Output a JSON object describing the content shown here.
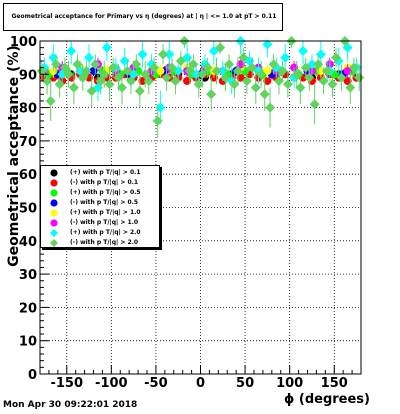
{
  "title": "Geometrical acceptance for Primary vs η (degrees) at |  η | <= 1.0 at pT > 0.11",
  "timestamp": "Mon Apr 30 09:22:01 2018",
  "chart_data": {
    "type": "scatter",
    "title": "Geometrical acceptance for Primary vs η (degrees) at |  η | <= 1.0 at pT > 0.11",
    "xlabel": "ϕ (degrees)",
    "ylabel": "Geometrical acceptance (%)",
    "xlim": [
      -180,
      180
    ],
    "ylim": [
      0,
      100
    ],
    "xticks": [
      -150,
      -100,
      -50,
      0,
      50,
      100,
      150
    ],
    "yticks": [
      0,
      10,
      20,
      30,
      40,
      50,
      60,
      70,
      80,
      90,
      100
    ],
    "grid": true,
    "legend_position": "middle-left",
    "series": [
      {
        "name": "(+) with p T/|q| > 0.1",
        "color": "#000000",
        "marker": "circle",
        "x": [
          -175,
          -145,
          -115,
          -85,
          -55,
          -25,
          5,
          35,
          65,
          95,
          125,
          155,
          175
        ],
        "y": [
          89,
          90,
          89,
          90,
          89,
          90,
          89,
          90,
          89,
          90,
          89,
          90,
          89
        ],
        "err": [
          1,
          1,
          1,
          1,
          1,
          1,
          1,
          1,
          1,
          1,
          1,
          1,
          1
        ]
      },
      {
        "name": "(-) with p T/|q| > 0.1",
        "color": "#ff0000",
        "marker": "circle",
        "x": [
          -175,
          -165,
          -155,
          -145,
          -135,
          -125,
          -115,
          -105,
          -95,
          -85,
          -75,
          -65,
          -55,
          -45,
          -35,
          -25,
          -15,
          -5,
          5,
          15,
          25,
          35,
          45,
          55,
          65,
          75,
          85,
          95,
          105,
          115,
          125,
          135,
          145,
          155,
          165,
          175
        ],
        "y": [
          89,
          89,
          88,
          89,
          90,
          89,
          88,
          89,
          89,
          90,
          89,
          88,
          89,
          90,
          89,
          89,
          88,
          89,
          90,
          89,
          88,
          89,
          89,
          90,
          89,
          88,
          89,
          90,
          89,
          89,
          88,
          89,
          90,
          89,
          88,
          89
        ],
        "err": [
          1,
          1,
          1,
          1,
          1,
          1,
          1,
          1,
          1,
          1,
          1,
          1,
          1,
          1,
          1,
          1,
          1,
          1,
          1,
          1,
          1,
          1,
          1,
          1,
          1,
          1,
          1,
          1,
          1,
          1,
          1,
          1,
          1,
          1,
          1,
          1
        ]
      },
      {
        "name": "(+) with p T/|q| > 0.5",
        "color": "#00ff00",
        "marker": "circle",
        "x": [
          -170,
          -150,
          -130,
          -110,
          -90,
          -70,
          -50,
          -30,
          -10,
          10,
          30,
          50,
          70,
          90,
          110,
          130,
          150,
          170
        ],
        "y": [
          90,
          91,
          90,
          91,
          90,
          91,
          90,
          91,
          90,
          91,
          90,
          91,
          90,
          91,
          90,
          91,
          90,
          91
        ],
        "err": [
          1.5,
          1.5,
          1.5,
          1.5,
          1.5,
          1.5,
          1.5,
          1.5,
          1.5,
          1.5,
          1.5,
          1.5,
          1.5,
          1.5,
          1.5,
          1.5,
          1.5,
          1.5
        ]
      },
      {
        "name": "(-) with p T/|q| > 0.5",
        "color": "#0000ff",
        "marker": "circle",
        "x": [
          -160,
          -120,
          -80,
          -40,
          0,
          40,
          80,
          120,
          160
        ],
        "y": [
          90,
          91,
          90,
          91,
          90,
          91,
          90,
          91,
          90
        ],
        "err": [
          1.5,
          1.5,
          1.5,
          1.5,
          1.5,
          1.5,
          1.5,
          1.5,
          1.5
        ]
      },
      {
        "name": "(+) with p T/|q| > 1.0",
        "color": "#ffff00",
        "marker": "circle",
        "x": [
          -165,
          -135,
          -105,
          -75,
          -45,
          -15,
          15,
          45,
          75,
          105,
          135,
          165
        ],
        "y": [
          91,
          92,
          91,
          92,
          91,
          92,
          91,
          92,
          91,
          92,
          91,
          92
        ],
        "err": [
          2,
          2,
          2,
          2,
          2,
          2,
          2,
          2,
          2,
          2,
          2,
          2
        ]
      },
      {
        "name": "(-) with p T/|q| > 1.0",
        "color": "#ff00ff",
        "marker": "circle",
        "x": [
          -175,
          -155,
          -135,
          -115,
          -95,
          -75,
          -55,
          -35,
          -15,
          5,
          25,
          45,
          65,
          85,
          105,
          125,
          145,
          165
        ],
        "y": [
          91,
          92,
          91,
          93,
          91,
          92,
          91,
          92,
          91,
          92,
          91,
          93,
          92,
          91,
          92,
          91,
          93,
          91
        ],
        "err": [
          2,
          2,
          2,
          2,
          2,
          2,
          2,
          2,
          2,
          2,
          2,
          2,
          2,
          2,
          2,
          2,
          2,
          2
        ]
      },
      {
        "name": "(+) with p T/|q| > 2.0",
        "color": "#00ffff",
        "marker": "diamond",
        "x": [
          -175,
          -165,
          -155,
          -145,
          -135,
          -125,
          -115,
          -105,
          -95,
          -85,
          -75,
          -65,
          -55,
          -45,
          -35,
          -25,
          -15,
          -5,
          5,
          15,
          25,
          35,
          45,
          55,
          65,
          75,
          85,
          95,
          105,
          115,
          125,
          135,
          145,
          155,
          165,
          175
        ],
        "y": [
          92,
          95,
          90,
          97,
          91,
          95,
          86,
          98,
          92,
          94,
          90,
          96,
          93,
          80,
          96,
          91,
          95,
          90,
          93,
          97,
          91,
          88,
          100,
          94,
          91,
          99,
          92,
          95,
          89,
          97,
          93,
          96,
          91,
          94,
          98,
          92
        ],
        "err": [
          3,
          4,
          3,
          4,
          3,
          4,
          4,
          4,
          3,
          4,
          3,
          4,
          3,
          5,
          4,
          3,
          4,
          3,
          3,
          4,
          3,
          4,
          4,
          3,
          4,
          4,
          3,
          4,
          3,
          4,
          3,
          4,
          3,
          4,
          4,
          3
        ]
      },
      {
        "name": "(-) with p T/|q| > 2.0",
        "color": "#5fd45f",
        "marker": "diamond",
        "x": [
          -178,
          -172,
          -168,
          -162,
          -158,
          -152,
          -148,
          -142,
          -138,
          -132,
          -128,
          -122,
          -118,
          -112,
          -108,
          -102,
          -98,
          -92,
          -88,
          -82,
          -78,
          -72,
          -68,
          -62,
          -58,
          -52,
          -48,
          -42,
          -38,
          -32,
          -28,
          -22,
          -18,
          -12,
          -8,
          -2,
          2,
          8,
          12,
          18,
          22,
          28,
          32,
          38,
          42,
          48,
          52,
          58,
          62,
          68,
          72,
          78,
          82,
          88,
          92,
          98,
          102,
          108,
          112,
          118,
          122,
          128,
          132,
          138,
          142,
          148,
          152,
          158,
          162,
          168,
          172,
          178
        ],
        "y": [
          91,
          88,
          82,
          93,
          87,
          92,
          90,
          86,
          93,
          89,
          91,
          85,
          93,
          88,
          90,
          87,
          92,
          89,
          86,
          91,
          88,
          93,
          85,
          90,
          88,
          92,
          76,
          96,
          89,
          92,
          88,
          94,
          100,
          91,
          93,
          87,
          90,
          92,
          84,
          91,
          98,
          89,
          93,
          87,
          91,
          95,
          88,
          92,
          86,
          90,
          84,
          80,
          93,
          88,
          91,
          87,
          100,
          90,
          86,
          92,
          89,
          81,
          93,
          88,
          91,
          87,
          95,
          89,
          100,
          86,
          92,
          89
        ],
        "err": [
          3,
          4,
          6,
          3,
          4,
          3,
          4,
          5,
          3,
          4,
          3,
          5,
          3,
          4,
          4,
          5,
          3,
          4,
          5,
          3,
          4,
          3,
          5,
          4,
          4,
          3,
          5,
          3,
          4,
          3,
          4,
          3,
          2,
          4,
          3,
          4,
          4,
          3,
          5,
          4,
          2,
          4,
          3,
          4,
          4,
          3,
          4,
          3,
          5,
          4,
          5,
          6,
          3,
          4,
          3,
          4,
          2,
          4,
          5,
          3,
          4,
          6,
          3,
          4,
          3,
          4,
          3,
          4,
          2,
          5,
          3,
          4
        ]
      }
    ]
  }
}
